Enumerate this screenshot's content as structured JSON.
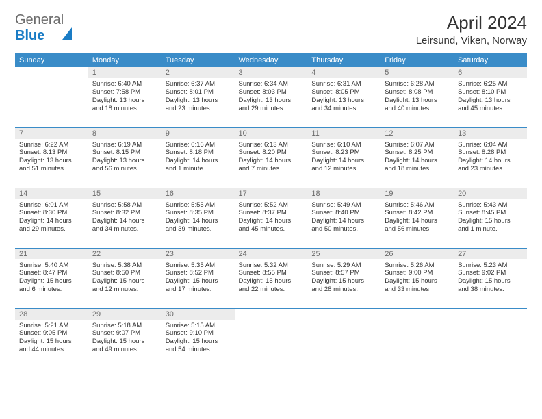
{
  "brand": {
    "part1": "General",
    "part2": "Blue"
  },
  "title": "April 2024",
  "location": "Leirsund, Viken, Norway",
  "colors": {
    "header_bg": "#3a8cc8",
    "header_fg": "#ffffff",
    "daynum_bg": "#ececec",
    "daynum_fg": "#6b6b6b",
    "text": "#333333",
    "accent": "#1a7cc5",
    "page_bg": "#ffffff"
  },
  "weekdays": [
    "Sunday",
    "Monday",
    "Tuesday",
    "Wednesday",
    "Thursday",
    "Friday",
    "Saturday"
  ],
  "weeks": [
    [
      {
        "n": "",
        "sr": "",
        "ss": "",
        "dl": "",
        "empty": true
      },
      {
        "n": "1",
        "sr": "6:40 AM",
        "ss": "7:58 PM",
        "dl": "13 hours and 18 minutes."
      },
      {
        "n": "2",
        "sr": "6:37 AM",
        "ss": "8:01 PM",
        "dl": "13 hours and 23 minutes."
      },
      {
        "n": "3",
        "sr": "6:34 AM",
        "ss": "8:03 PM",
        "dl": "13 hours and 29 minutes."
      },
      {
        "n": "4",
        "sr": "6:31 AM",
        "ss": "8:05 PM",
        "dl": "13 hours and 34 minutes."
      },
      {
        "n": "5",
        "sr": "6:28 AM",
        "ss": "8:08 PM",
        "dl": "13 hours and 40 minutes."
      },
      {
        "n": "6",
        "sr": "6:25 AM",
        "ss": "8:10 PM",
        "dl": "13 hours and 45 minutes."
      }
    ],
    [
      {
        "n": "7",
        "sr": "6:22 AM",
        "ss": "8:13 PM",
        "dl": "13 hours and 51 minutes."
      },
      {
        "n": "8",
        "sr": "6:19 AM",
        "ss": "8:15 PM",
        "dl": "13 hours and 56 minutes."
      },
      {
        "n": "9",
        "sr": "6:16 AM",
        "ss": "8:18 PM",
        "dl": "14 hours and 1 minute."
      },
      {
        "n": "10",
        "sr": "6:13 AM",
        "ss": "8:20 PM",
        "dl": "14 hours and 7 minutes."
      },
      {
        "n": "11",
        "sr": "6:10 AM",
        "ss": "8:23 PM",
        "dl": "14 hours and 12 minutes."
      },
      {
        "n": "12",
        "sr": "6:07 AM",
        "ss": "8:25 PM",
        "dl": "14 hours and 18 minutes."
      },
      {
        "n": "13",
        "sr": "6:04 AM",
        "ss": "8:28 PM",
        "dl": "14 hours and 23 minutes."
      }
    ],
    [
      {
        "n": "14",
        "sr": "6:01 AM",
        "ss": "8:30 PM",
        "dl": "14 hours and 29 minutes."
      },
      {
        "n": "15",
        "sr": "5:58 AM",
        "ss": "8:32 PM",
        "dl": "14 hours and 34 minutes."
      },
      {
        "n": "16",
        "sr": "5:55 AM",
        "ss": "8:35 PM",
        "dl": "14 hours and 39 minutes."
      },
      {
        "n": "17",
        "sr": "5:52 AM",
        "ss": "8:37 PM",
        "dl": "14 hours and 45 minutes."
      },
      {
        "n": "18",
        "sr": "5:49 AM",
        "ss": "8:40 PM",
        "dl": "14 hours and 50 minutes."
      },
      {
        "n": "19",
        "sr": "5:46 AM",
        "ss": "8:42 PM",
        "dl": "14 hours and 56 minutes."
      },
      {
        "n": "20",
        "sr": "5:43 AM",
        "ss": "8:45 PM",
        "dl": "15 hours and 1 minute."
      }
    ],
    [
      {
        "n": "21",
        "sr": "5:40 AM",
        "ss": "8:47 PM",
        "dl": "15 hours and 6 minutes."
      },
      {
        "n": "22",
        "sr": "5:38 AM",
        "ss": "8:50 PM",
        "dl": "15 hours and 12 minutes."
      },
      {
        "n": "23",
        "sr": "5:35 AM",
        "ss": "8:52 PM",
        "dl": "15 hours and 17 minutes."
      },
      {
        "n": "24",
        "sr": "5:32 AM",
        "ss": "8:55 PM",
        "dl": "15 hours and 22 minutes."
      },
      {
        "n": "25",
        "sr": "5:29 AM",
        "ss": "8:57 PM",
        "dl": "15 hours and 28 minutes."
      },
      {
        "n": "26",
        "sr": "5:26 AM",
        "ss": "9:00 PM",
        "dl": "15 hours and 33 minutes."
      },
      {
        "n": "27",
        "sr": "5:23 AM",
        "ss": "9:02 PM",
        "dl": "15 hours and 38 minutes."
      }
    ],
    [
      {
        "n": "28",
        "sr": "5:21 AM",
        "ss": "9:05 PM",
        "dl": "15 hours and 44 minutes."
      },
      {
        "n": "29",
        "sr": "5:18 AM",
        "ss": "9:07 PM",
        "dl": "15 hours and 49 minutes."
      },
      {
        "n": "30",
        "sr": "5:15 AM",
        "ss": "9:10 PM",
        "dl": "15 hours and 54 minutes."
      },
      {
        "n": "",
        "sr": "",
        "ss": "",
        "dl": "",
        "empty": true
      },
      {
        "n": "",
        "sr": "",
        "ss": "",
        "dl": "",
        "empty": true
      },
      {
        "n": "",
        "sr": "",
        "ss": "",
        "dl": "",
        "empty": true
      },
      {
        "n": "",
        "sr": "",
        "ss": "",
        "dl": "",
        "empty": true
      }
    ]
  ],
  "labels": {
    "sunrise": "Sunrise: ",
    "sunset": "Sunset: ",
    "daylight": "Daylight: "
  }
}
